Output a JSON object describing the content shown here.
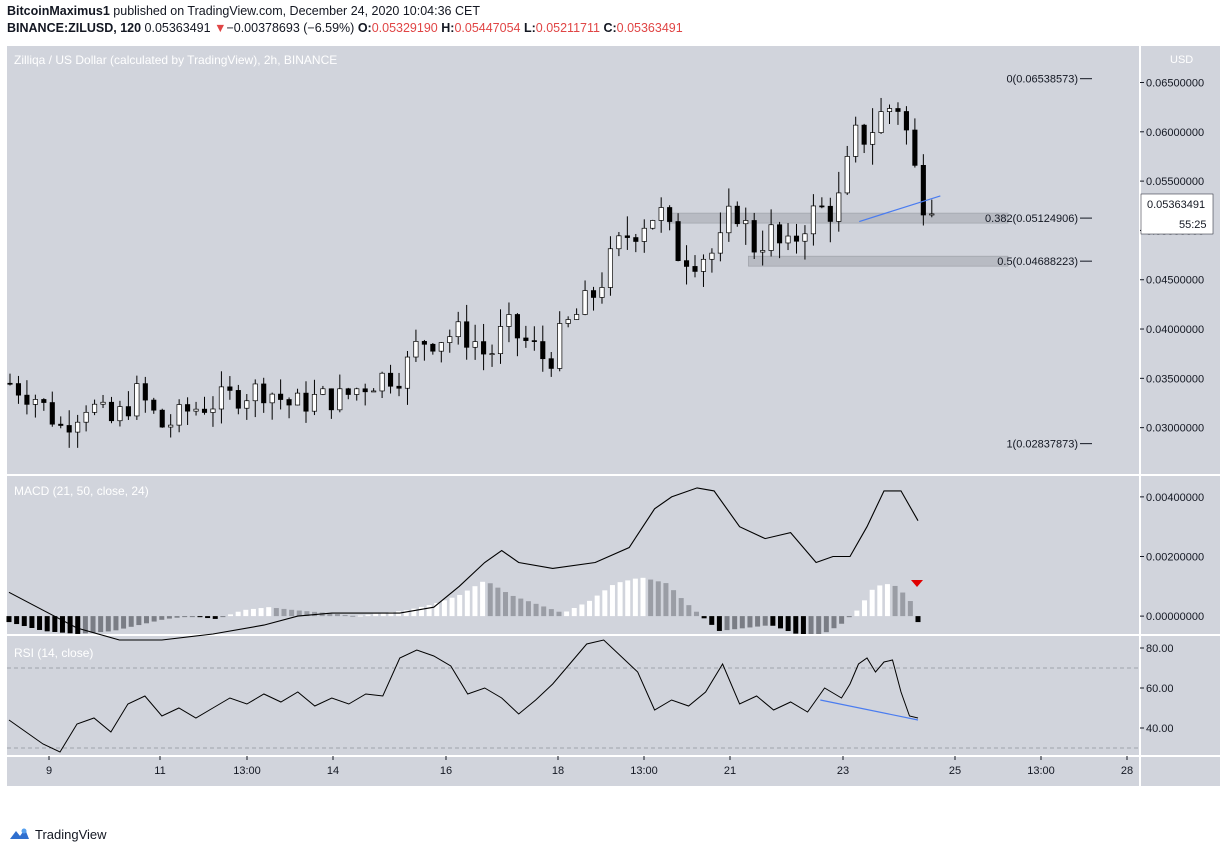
{
  "header": {
    "line1_user": "BitcoinMaximus1",
    "line1_rest": " published on TradingView.com, December 24, 2020 10:04:36 CET",
    "symbol": "BINANCE:ZILUSD, 120",
    "last": "0.05363491",
    "change_arrow": "▼",
    "change": "−0.00378693 (−6.59%)",
    "o_label": "O:",
    "o": "0.05329190",
    "h_label": "H:",
    "h": "0.05447054",
    "l_label": "L:",
    "l": "0.05211711",
    "c_label": "C:",
    "c": "0.05363491"
  },
  "footer": {
    "brand": "TradingView"
  },
  "colors": {
    "pane_bg": "#d1d4dc",
    "up": "#ffffff",
    "down": "#000000",
    "trend": "#4a7cf0",
    "fib_box": "#b8bbc3",
    "signal_red": "#e00000"
  },
  "chart_data": [
    {
      "type": "candlestick",
      "title": "Zilliqa / US Dollar (calculated by TradingView), 2h, BINANCE",
      "axis_unit": "USD",
      "ylim": [
        0.0253,
        0.0687
      ],
      "y_ticks": [
        "0.06500000",
        "0.06000000",
        "0.05500000",
        "0.05000000",
        "0.04500000",
        "0.04000000",
        "0.03500000",
        "0.03000000"
      ],
      "y_tick_values": [
        0.065,
        0.06,
        0.055,
        0.05,
        0.045,
        0.04,
        0.035,
        0.03
      ],
      "x_ticks": [
        "9",
        "11",
        "13:00",
        "14",
        "16",
        "18",
        "13:00",
        "21",
        "23",
        "25",
        "13:00",
        "28"
      ],
      "current_price_label": "0.05363491",
      "countdown_label": "55:25",
      "fib_levels": [
        {
          "label": "0(0.06538573)",
          "value": 0.06538573
        },
        {
          "label": "0.382(0.05124906)",
          "value": 0.05124906
        },
        {
          "label": "0.5(0.04688223)",
          "value": 0.04688223
        },
        {
          "label": "1(0.02837873)",
          "value": 0.02837873
        }
      ],
      "close_path": [
        [
          0,
          0.0345
        ],
        [
          3,
          0.0331
        ],
        [
          6,
          0.03
        ],
        [
          9,
          0.0325
        ],
        [
          12,
          0.0305
        ],
        [
          15,
          0.0335
        ],
        [
          18,
          0.03
        ],
        [
          21,
          0.0318
        ],
        [
          24,
          0.0326
        ],
        [
          27,
          0.0334
        ],
        [
          30,
          0.034
        ],
        [
          33,
          0.0322
        ],
        [
          36,
          0.033
        ],
        [
          39,
          0.033
        ],
        [
          41,
          0.0342
        ],
        [
          44,
          0.0353
        ],
        [
          46,
          0.0355
        ],
        [
          48,
          0.0388
        ],
        [
          52,
          0.0395
        ],
        [
          54,
          0.0393
        ],
        [
          56,
          0.037
        ],
        [
          58,
          0.0402
        ],
        [
          61,
          0.0383
        ],
        [
          63,
          0.0367
        ],
        [
          65,
          0.04
        ],
        [
          68,
          0.043
        ],
        [
          72,
          0.0493
        ],
        [
          74,
          0.051
        ],
        [
          76,
          0.052
        ],
        [
          78,
          0.048
        ],
        [
          80,
          0.0475
        ],
        [
          83,
          0.0478
        ],
        [
          85,
          0.0527
        ],
        [
          87,
          0.0485
        ],
        [
          89,
          0.0497
        ],
        [
          91,
          0.0475
        ],
        [
          93,
          0.051
        ],
        [
          95,
          0.052
        ],
        [
          97,
          0.0525
        ],
        [
          99,
          0.059
        ],
        [
          101,
          0.0605
        ],
        [
          103,
          0.0625
        ],
        [
          104,
          0.063
        ],
        [
          105,
          0.06
        ],
        [
          106,
          0.056
        ],
        [
          107,
          0.0535
        ],
        [
          108,
          0.0536
        ]
      ],
      "series": [
        {
          "name": "ZILUSD",
          "type": "candlestick",
          "count": 110
        }
      ],
      "trendline": {
        "from": [
          99.5,
          0.0509
        ],
        "to": [
          109,
          0.0535
        ]
      }
    },
    {
      "type": "bar",
      "title": "MACD (21, 50, close, 24)",
      "ylim": [
        -0.0006,
        0.0047
      ],
      "y_ticks": [
        "0.00400000",
        "0.00200000",
        "0.00000000"
      ],
      "y_tick_values": [
        0.004,
        0.002,
        0.0
      ],
      "macd_path": [
        [
          0,
          0.0008
        ],
        [
          4,
          0.0002
        ],
        [
          8,
          -0.0004
        ],
        [
          13,
          -0.0008
        ],
        [
          18,
          -0.0008
        ],
        [
          24,
          -0.0006
        ],
        [
          30,
          -0.0003
        ],
        [
          34,
          0.0
        ],
        [
          38,
          0.0001
        ],
        [
          42,
          0.0001
        ],
        [
          46,
          0.0001
        ],
        [
          50,
          0.0003
        ],
        [
          53,
          0.001
        ],
        [
          56,
          0.0018
        ],
        [
          58,
          0.0022
        ],
        [
          60,
          0.0018
        ],
        [
          64,
          0.0016
        ],
        [
          69,
          0.0018
        ],
        [
          73,
          0.0023
        ],
        [
          76,
          0.0036
        ],
        [
          78,
          0.004
        ],
        [
          81,
          0.0043
        ],
        [
          83,
          0.0042
        ],
        [
          86,
          0.003
        ],
        [
          89,
          0.0026
        ],
        [
          92,
          0.0028
        ],
        [
          95,
          0.0018
        ],
        [
          97,
          0.002
        ],
        [
          99,
          0.002
        ],
        [
          101,
          0.003
        ],
        [
          103,
          0.0042
        ],
        [
          105,
          0.0042
        ],
        [
          107,
          0.0032
        ]
      ],
      "histogram_path": [
        [
          0,
          -0.0002
        ],
        [
          4,
          -0.0005
        ],
        [
          8,
          -0.0006
        ],
        [
          12,
          -0.0005
        ],
        [
          15,
          -0.0003
        ],
        [
          18,
          -0.0001
        ],
        [
          21,
          0.0
        ],
        [
          24,
          -0.0001
        ],
        [
          27,
          0.0002
        ],
        [
          30,
          0.0003
        ],
        [
          33,
          0.0002
        ],
        [
          37,
          0.0001
        ],
        [
          40,
          0.0
        ],
        [
          43,
          0.0001
        ],
        [
          46,
          0.0002
        ],
        [
          49,
          0.0004
        ],
        [
          52,
          0.0007
        ],
        [
          55,
          0.0012
        ],
        [
          58,
          0.0007
        ],
        [
          61,
          0.0004
        ],
        [
          64,
          0.0001
        ],
        [
          67,
          0.0005
        ],
        [
          70,
          0.0011
        ],
        [
          73,
          0.0013
        ],
        [
          76,
          0.0011
        ],
        [
          78,
          0.0005
        ],
        [
          80,
          0.0
        ],
        [
          82,
          -0.0005
        ],
        [
          85,
          -0.0004
        ],
        [
          88,
          -0.0003
        ],
        [
          91,
          -0.0006
        ],
        [
          94,
          -0.0006
        ],
        [
          96,
          -0.0003
        ],
        [
          98,
          0.0002
        ],
        [
          100,
          0.001
        ],
        [
          102,
          0.0011
        ],
        [
          104,
          0.0006
        ],
        [
          105,
          -0.0002
        ]
      ]
    },
    {
      "type": "line",
      "title": "RSI (14, close)",
      "ylim": [
        26,
        86
      ],
      "y_ticks": [
        "80.00",
        "60.00",
        "40.00"
      ],
      "y_tick_values": [
        80,
        60,
        40
      ],
      "bands": [
        70,
        30
      ],
      "rsi": [
        [
          0,
          44
        ],
        [
          2,
          38
        ],
        [
          4,
          32
        ],
        [
          6,
          28
        ],
        [
          8,
          42
        ],
        [
          10,
          45
        ],
        [
          12,
          38
        ],
        [
          14,
          52
        ],
        [
          16,
          56
        ],
        [
          18,
          46
        ],
        [
          20,
          50
        ],
        [
          22,
          45
        ],
        [
          24,
          50
        ],
        [
          26,
          55
        ],
        [
          28,
          52
        ],
        [
          30,
          57
        ],
        [
          32,
          53
        ],
        [
          34,
          58
        ],
        [
          36,
          51
        ],
        [
          38,
          55
        ],
        [
          40,
          52
        ],
        [
          42,
          57
        ],
        [
          44,
          56
        ],
        [
          46,
          75
        ],
        [
          48,
          79
        ],
        [
          50,
          76
        ],
        [
          52,
          71
        ],
        [
          54,
          57
        ],
        [
          56,
          60
        ],
        [
          58,
          55
        ],
        [
          60,
          47
        ],
        [
          62,
          54
        ],
        [
          64,
          62
        ],
        [
          66,
          72
        ],
        [
          68,
          82
        ],
        [
          70,
          84
        ],
        [
          72,
          76
        ],
        [
          74,
          68
        ],
        [
          76,
          49
        ],
        [
          78,
          54
        ],
        [
          80,
          51
        ],
        [
          82,
          58
        ],
        [
          84,
          72
        ],
        [
          86,
          52
        ],
        [
          88,
          56
        ],
        [
          90,
          49
        ],
        [
          92,
          53
        ],
        [
          94,
          48
        ],
        [
          96,
          60
        ],
        [
          98,
          55
        ],
        [
          99,
          62
        ],
        [
          100,
          72
        ],
        [
          101,
          75
        ],
        [
          102,
          68
        ],
        [
          103,
          73
        ],
        [
          104,
          74
        ],
        [
          105,
          58
        ],
        [
          106,
          46
        ],
        [
          107,
          45
        ]
      ],
      "trendline": {
        "from": [
          95.5,
          54
        ],
        "to": [
          107,
          44
        ]
      }
    }
  ]
}
